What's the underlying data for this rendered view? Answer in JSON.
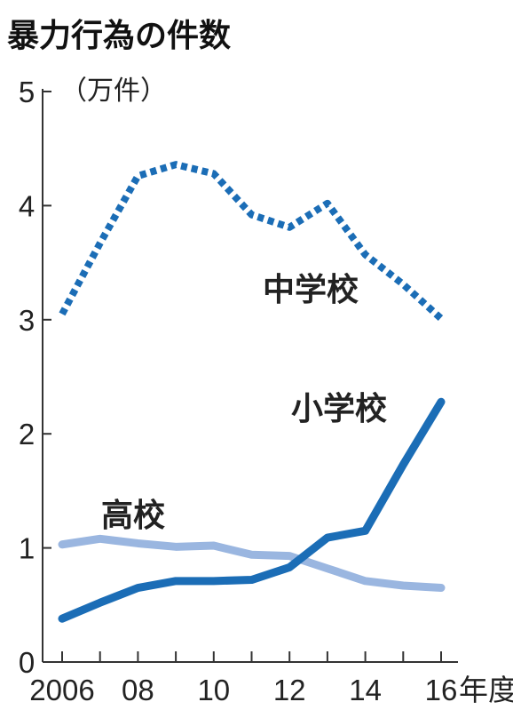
{
  "chart_data": {
    "type": "line",
    "title": "暴力行為の件数",
    "unit": "（万件）",
    "x": [
      2006,
      2007,
      2008,
      2009,
      2010,
      2011,
      2012,
      2013,
      2014,
      2015,
      2016
    ],
    "x_tick_labels": [
      "2006",
      "08",
      "10",
      "12",
      "14",
      "16"
    ],
    "x_suffix": "年度",
    "y_ticks": [
      "0",
      "1",
      "2",
      "3",
      "4",
      "5"
    ],
    "ylim": [
      0,
      5
    ],
    "series": [
      {
        "name": "中学校",
        "color": "#1b6db6",
        "style": "dotted",
        "values": [
          3.05,
          3.67,
          4.26,
          4.36,
          4.28,
          3.92,
          3.81,
          4.02,
          3.57,
          3.31,
          3.01
        ]
      },
      {
        "name": "小学校",
        "color": "#1b6db6",
        "style": "solid",
        "values": [
          0.38,
          0.52,
          0.65,
          0.71,
          0.71,
          0.72,
          0.83,
          1.09,
          1.15,
          1.73,
          2.28
        ]
      },
      {
        "name": "高校",
        "color": "#9ab6e0",
        "style": "solid",
        "values": [
          1.03,
          1.08,
          1.04,
          1.01,
          1.02,
          0.94,
          0.93,
          0.82,
          0.71,
          0.67,
          0.65
        ]
      }
    ]
  }
}
